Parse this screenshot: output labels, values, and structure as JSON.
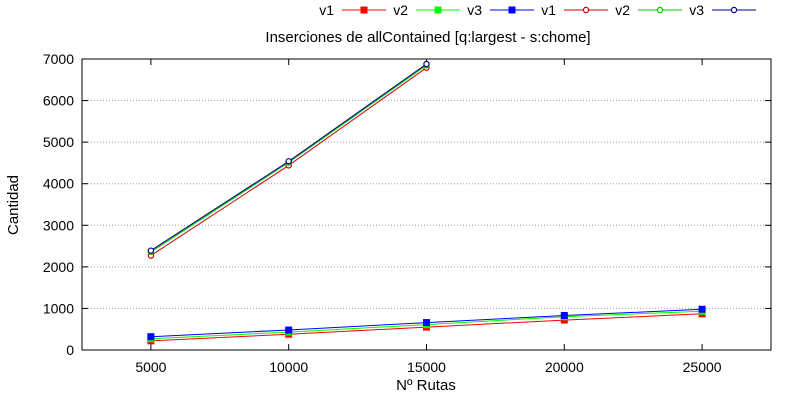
{
  "chart_data": {
    "type": "line",
    "title": "Inserciones de allContained [q:largest - s:chome]",
    "xlabel": "Nº Rutas",
    "ylabel": "Cantidad",
    "xlim": [
      2500,
      27500
    ],
    "ylim": [
      0,
      7000
    ],
    "x_ticks": [
      "5000",
      "10000",
      "15000",
      "20000",
      "25000"
    ],
    "y_ticks": [
      "0",
      "1000",
      "2000",
      "3000",
      "4000",
      "5000",
      "6000",
      "7000"
    ],
    "grid": "horizontal dotted",
    "legend_position": "top",
    "series": [
      {
        "name": "v1",
        "color": "#ff0000",
        "marker": "filled-square",
        "x": [
          5000,
          10000,
          15000,
          20000,
          25000
        ],
        "values": [
          220,
          380,
          550,
          720,
          870
        ]
      },
      {
        "name": "v2",
        "color": "#00ff00",
        "marker": "filled-square",
        "x": [
          5000,
          10000,
          15000,
          20000,
          25000
        ],
        "values": [
          270,
          430,
          610,
          800,
          930
        ]
      },
      {
        "name": "v3",
        "color": "#0000ff",
        "marker": "filled-square",
        "x": [
          5000,
          10000,
          15000,
          20000,
          25000
        ],
        "values": [
          320,
          480,
          660,
          830,
          980
        ]
      },
      {
        "name": "v1",
        "color": "#cc0000",
        "marker": "open-circle",
        "x": [
          5000,
          10000,
          15000
        ],
        "values": [
          2270,
          4440,
          6790
        ]
      },
      {
        "name": "v2",
        "color": "#00cc00",
        "marker": "open-circle",
        "x": [
          5000,
          10000,
          15000
        ],
        "values": [
          2360,
          4510,
          6850
        ]
      },
      {
        "name": "v3",
        "color": "#000080",
        "marker": "open-circle",
        "x": [
          5000,
          10000,
          15000
        ],
        "values": [
          2390,
          4540,
          6880
        ]
      }
    ]
  }
}
